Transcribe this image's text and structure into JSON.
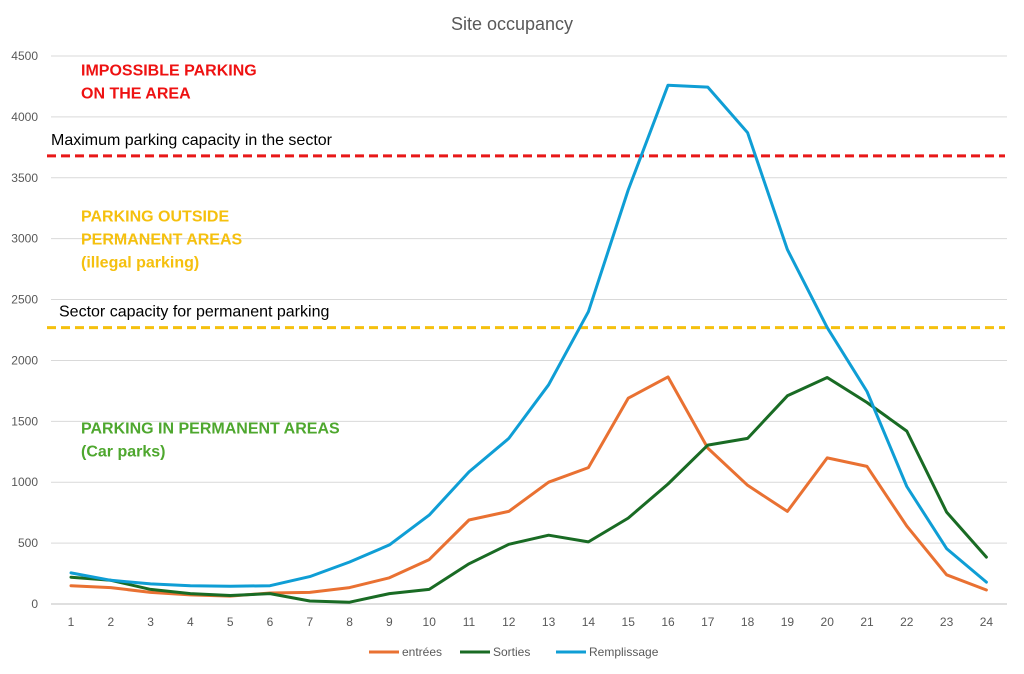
{
  "chart_data": {
    "type": "line",
    "title": "Site occupancy",
    "xlabel": "",
    "ylabel": "",
    "ylim": [
      0,
      4500
    ],
    "y_ticks": [
      0,
      500,
      1000,
      1500,
      2000,
      2500,
      3000,
      3500,
      4000,
      4500
    ],
    "grid": "horizontal",
    "legend_position": "bottom",
    "categories": [
      1,
      2,
      3,
      4,
      5,
      6,
      7,
      8,
      9,
      10,
      11,
      12,
      13,
      14,
      15,
      16,
      17,
      18,
      19,
      20,
      21,
      22,
      23,
      24
    ],
    "series": [
      {
        "name": "entrées",
        "color": "#e97132",
        "values": [
          150,
          135,
          95,
          75,
          65,
          90,
          95,
          135,
          215,
          365,
          690,
          760,
          1000,
          1120,
          1690,
          1865,
          1280,
          975,
          760,
          1200,
          1130,
          640,
          240,
          115
        ]
      },
      {
        "name": "Sorties",
        "color": "#196b24",
        "values": [
          220,
          195,
          120,
          85,
          70,
          85,
          25,
          15,
          85,
          120,
          330,
          490,
          565,
          510,
          705,
          985,
          1305,
          1360,
          1710,
          1860,
          1655,
          1420,
          755,
          385
        ]
      },
      {
        "name": "Remplissage",
        "color": "#0f9ed5",
        "values": [
          255,
          195,
          165,
          150,
          145,
          150,
          225,
          345,
          485,
          730,
          1085,
          1360,
          1800,
          2400,
          3400,
          4260,
          4245,
          3870,
          2910,
          2270,
          1745,
          965,
          455,
          180
        ]
      }
    ],
    "reference_lines": [
      {
        "value": 3680,
        "color": "#e81818",
        "style": "dashed",
        "label": "Maximum parking capacity in the sector"
      },
      {
        "value": 2270,
        "color": "#f5c00e",
        "style": "dashed",
        "label": "Sector capacity for permanent parking"
      }
    ],
    "annotations": [
      {
        "lines": [
          "IMPOSSIBLE PARKING",
          "ON THE AREA"
        ],
        "color": "#ee1111",
        "y_value": 4380
      },
      {
        "lines": [
          "PARKING OUTSIDE",
          "PERMANENT AREAS",
          "(illegal parking)"
        ],
        "color": "#f5c00e",
        "y_value": 3180
      },
      {
        "lines": [
          "PARKING IN PERMANENT AREAS",
          "(Car parks)"
        ],
        "color": "#4ea72e",
        "y_value": 1440
      }
    ]
  }
}
